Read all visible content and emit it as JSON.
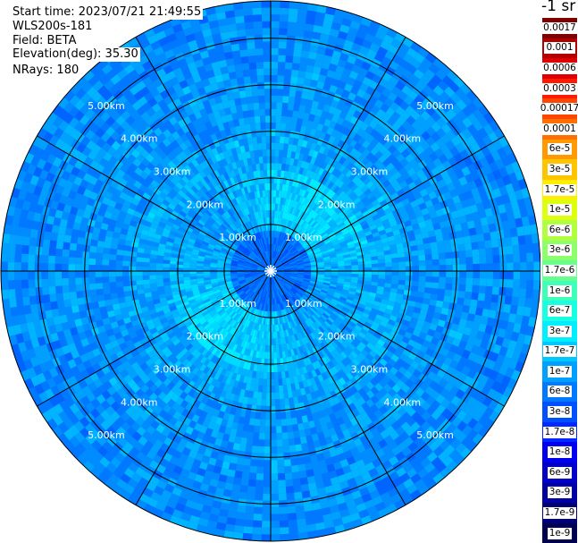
{
  "info": {
    "start_time": "Start time: 2023/07/21 21:49:55",
    "instrument": "WLS200s-181",
    "field": "Field: BETA",
    "elevation": "Elevation(deg): 35.30",
    "nrays": "NRays: 180"
  },
  "legend": {
    "units": "-1 sr",
    "entries": [
      {
        "label": "0.0017",
        "color": "#7f0000"
      },
      {
        "label": "0.001",
        "color": "#b20000"
      },
      {
        "label": "0.0006",
        "color": "#e00000"
      },
      {
        "label": "0.0003",
        "color": "#ff1a00"
      },
      {
        "label": "0.00017",
        "color": "#ff4500"
      },
      {
        "label": "0.0001",
        "color": "#ff7000"
      },
      {
        "label": "6e-5",
        "color": "#ff9a00"
      },
      {
        "label": "3e-5",
        "color": "#ffc400"
      },
      {
        "label": "1.7e-5",
        "color": "#ffee00"
      },
      {
        "label": "1e-5",
        "color": "#ddff10"
      },
      {
        "label": "6e-6",
        "color": "#b2ff40"
      },
      {
        "label": "3e-6",
        "color": "#8cff6a"
      },
      {
        "label": "1.7e-6",
        "color": "#66ff90"
      },
      {
        "label": "1e-6",
        "color": "#40ffb8"
      },
      {
        "label": "6e-7",
        "color": "#1affe0"
      },
      {
        "label": "3e-7",
        "color": "#00eeff"
      },
      {
        "label": "1.7e-7",
        "color": "#00c8ff"
      },
      {
        "label": "1e-7",
        "color": "#00a0ff"
      },
      {
        "label": "6e-8",
        "color": "#0078ff"
      },
      {
        "label": "3e-8",
        "color": "#0050ff"
      },
      {
        "label": "1.7e-8",
        "color": "#0028ff"
      },
      {
        "label": "1e-8",
        "color": "#0000f0"
      },
      {
        "label": "6e-9",
        "color": "#0000c8"
      },
      {
        "label": "3e-9",
        "color": "#0000a0"
      },
      {
        "label": "1.7e-9",
        "color": "#000078"
      },
      {
        "label": "1e-9",
        "color": "#000050"
      }
    ]
  },
  "chart_data": {
    "type": "heatmap",
    "projection": "polar",
    "field": "BETA",
    "nrays": 180,
    "max_range_km": 5.8,
    "range_rings_km": [
      1,
      2,
      3,
      4,
      5
    ],
    "ring_labels": [
      "1.00km",
      "2.00km",
      "3.00km",
      "4.00km",
      "5.00km"
    ],
    "spoke_angles_deg": [
      0,
      30,
      60,
      90,
      120,
      150,
      180,
      210,
      240,
      270,
      300,
      330
    ],
    "dominant_range": [
      "3e-8",
      "3e-7"
    ],
    "grid": true,
    "legend_position": "right",
    "colors": {
      "ring": "#000000",
      "label_text": "#ffffff",
      "background": "#ffffff"
    }
  }
}
